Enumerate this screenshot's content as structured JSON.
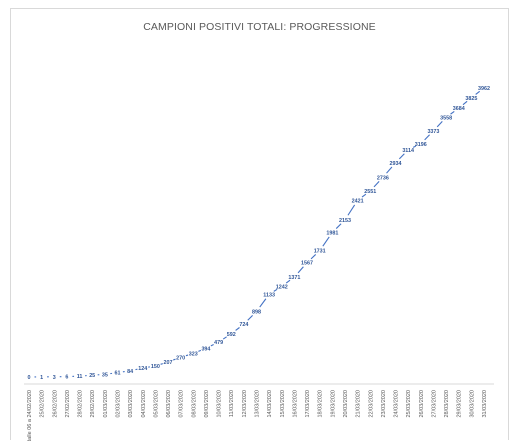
{
  "chart_data": {
    "type": "line",
    "title": "CAMPIONI POSITIVI TOTALI: PROGRESSIONE",
    "xlabel": "",
    "ylabel": "",
    "legend": "none",
    "grid": false,
    "series_color": "#4472c4",
    "label_color": "#2f5597",
    "categories": [
      "dalle 06 a 24/02/2020",
      "25/02/2020",
      "26/02/2020",
      "27/02/2020",
      "28/02/2020",
      "29/02/2020",
      "01/03/2020",
      "02/03/2020",
      "03/03/2020",
      "04/03/2020",
      "05/03/2020",
      "06/03/2020",
      "07/03/2020",
      "08/03/2020",
      "09/03/2020",
      "10/03/2020",
      "11/03/2020",
      "12/03/2020",
      "13/03/2020",
      "14/03/2020",
      "15/03/2020",
      "16/03/2020",
      "17/03/2020",
      "18/03/2020",
      "19/03/2020",
      "20/03/2020",
      "21/03/2020",
      "22/03/2020",
      "23/03/2020",
      "24/03/2020",
      "25/03/2020",
      "26/03/2020",
      "27/03/2020",
      "28/03/2020",
      "29/03/2020",
      "30/03/2020",
      "31/03/2020"
    ],
    "values": [
      0,
      1,
      3,
      6,
      11,
      25,
      35,
      61,
      84,
      124,
      150,
      207,
      270,
      323,
      394,
      479,
      592,
      724,
      898,
      1133,
      1242,
      1371,
      1567,
      1731,
      1981,
      2153,
      2421,
      2551,
      2736,
      2934,
      3114,
      3196,
      3373,
      3558,
      3684,
      3825,
      3962
    ],
    "ylim": [
      0,
      4200
    ]
  }
}
